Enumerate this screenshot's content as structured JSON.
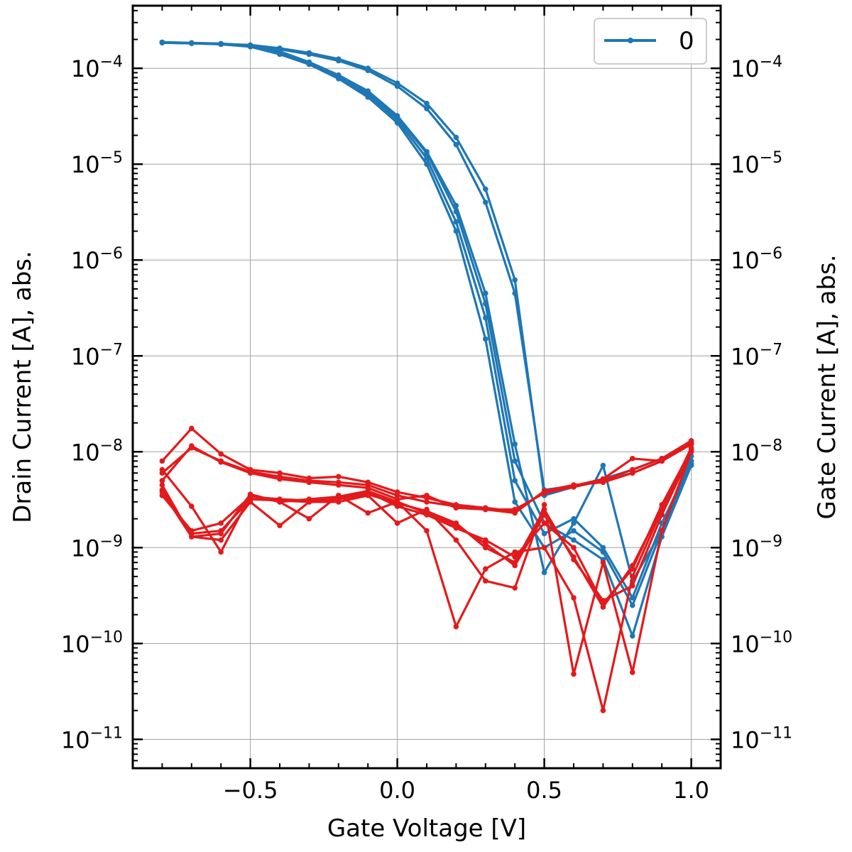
{
  "chart_data": {
    "type": "line",
    "xlabel": "Gate Voltage [V]",
    "ylabel": "Drain Current [A], abs.",
    "y2label": "Gate Current [A], abs.",
    "yscale": "log",
    "xlim": [
      -0.9,
      1.1
    ],
    "ylim": [
      5e-12,
      0.00045
    ],
    "xticks": [
      -0.5,
      0.0,
      0.5,
      1.0
    ],
    "xtick_labels": [
      "−0.5",
      "0.0",
      "0.5",
      "1.0"
    ],
    "yticks": [
      {
        "value": 0.0001,
        "mantissa": "10",
        "exponent": "−4"
      },
      {
        "value": 1e-05,
        "mantissa": "10",
        "exponent": "−5"
      },
      {
        "value": 1e-06,
        "mantissa": "10",
        "exponent": "−6"
      },
      {
        "value": 1e-07,
        "mantissa": "10",
        "exponent": "−7"
      },
      {
        "value": 1e-08,
        "mantissa": "10",
        "exponent": "−8"
      },
      {
        "value": 1e-09,
        "mantissa": "10",
        "exponent": "−9"
      },
      {
        "value": 1e-10,
        "mantissa": "10",
        "exponent": "−10"
      },
      {
        "value": 1e-11,
        "mantissa": "10",
        "exponent": "−11"
      }
    ],
    "grid": true,
    "legend": {
      "position": "top-right",
      "entries": [
        {
          "label": "0",
          "color": "#1f77b4"
        }
      ]
    },
    "colors": {
      "drain": "#1f77b4",
      "gate": "#e31a1c",
      "grid": "#a0a0a0"
    },
    "x": [
      -0.8,
      -0.7,
      -0.6,
      -0.5,
      -0.4,
      -0.3,
      -0.2,
      -0.1,
      0.0,
      0.1,
      0.2,
      0.3,
      0.4,
      0.5,
      0.6,
      0.7,
      0.8,
      0.9,
      1.0
    ],
    "drain_series": [
      {
        "values": [
          0.000185,
          0.000182,
          0.000178,
          0.000168,
          0.00014,
          0.00011,
          7.8e-05,
          5e-05,
          2.7e-05,
          1e-05,
          2e-06,
          1.5e-07,
          3e-09,
          1e-09,
          1.5e-09,
          9e-10,
          2.5e-10,
          1.5e-09,
          7.5e-09
        ]
      },
      {
        "values": [
          0.000186,
          0.000183,
          0.000179,
          0.00017,
          0.000145,
          0.000112,
          8e-05,
          5.3e-05,
          2.9e-05,
          1.15e-05,
          2.5e-06,
          2.5e-07,
          5e-09,
          1.4e-09,
          2e-09,
          1e-09,
          3e-10,
          1.8e-09,
          8e-09
        ]
      },
      {
        "values": [
          0.000187,
          0.000184,
          0.00018,
          0.000172,
          0.000148,
          0.000114,
          8.3e-05,
          5.6e-05,
          3.1e-05,
          1.3e-05,
          3.2e-06,
          3.5e-07,
          8e-09,
          1.8e-09,
          1.2e-09,
          7.5e-10,
          1.2e-10,
          1.3e-09,
          7.2e-09
        ]
      },
      {
        "values": [
          0.000187,
          0.000184,
          0.000181,
          0.000173,
          0.00015,
          0.000116,
          8.5e-05,
          5.8e-05,
          3.2e-05,
          1.35e-05,
          3.7e-06,
          4.5e-07,
          1.2e-08,
          5.5e-10,
          1.8e-09,
          7.2e-09,
          4.5e-10,
          1.5e-09,
          9e-09
        ]
      },
      {
        "values": [
          0.000185,
          0.000183,
          0.00018,
          0.000175,
          0.000162,
          0.000145,
          0.000125,
          0.0001,
          7e-05,
          4.3e-05,
          1.9e-05,
          5.5e-06,
          6.2e-07,
          3.5e-09,
          4.3e-09,
          5e-09,
          6e-09,
          8e-09,
          1.2e-08
        ]
      },
      {
        "values": [
          0.000185,
          0.000182,
          0.000179,
          0.000174,
          0.000158,
          0.00014,
          0.00012,
          9.5e-05,
          6.5e-05,
          3.8e-05,
          1.6e-05,
          4e-06,
          4.5e-07,
          4e-09,
          4.4e-09,
          5.2e-09,
          6.5e-09,
          8.5e-09,
          1.3e-08
        ]
      }
    ],
    "gate_series": [
      {
        "values": [
          8e-09,
          1.75e-08,
          9.5e-09,
          6.5e-09,
          6e-09,
          5.3e-09,
          5.5e-09,
          4.8e-09,
          3.8e-09,
          3.3e-09,
          2.8e-09,
          2.6e-09,
          2.4e-09,
          3.8e-09,
          4.4e-09,
          5.2e-09,
          8.5e-09,
          8e-09,
          1.25e-08
        ]
      },
      {
        "values": [
          6e-09,
          1.1e-08,
          8e-09,
          6.2e-09,
          5.5e-09,
          5e-09,
          4.8e-09,
          4.5e-09,
          3.5e-09,
          3e-09,
          2.7e-09,
          2.5e-09,
          2.5e-09,
          3.7e-09,
          4.3e-09,
          5e-09,
          6.5e-09,
          8.5e-09,
          1.3e-08
        ]
      },
      {
        "values": [
          5e-09,
          1.15e-08,
          7.8e-09,
          6e-09,
          5.2e-09,
          4.8e-09,
          4.5e-09,
          4.2e-09,
          3.2e-09,
          3.5e-09,
          2.6e-09,
          2.5e-09,
          2.3e-09,
          3.9e-09,
          4.5e-09,
          4.8e-09,
          6e-09,
          8e-09,
          1.2e-08
        ]
      },
      {
        "values": [
          6.5e-09,
          2.7e-09,
          9e-10,
          3.5e-09,
          3e-09,
          2e-09,
          3.5e-09,
          2.3e-09,
          3e-09,
          1.5e-09,
          1.5e-10,
          6e-10,
          9e-10,
          1e-09,
          3e-10,
          2e-11,
          5e-10,
          2.5e-09,
          1.1e-08
        ]
      },
      {
        "values": [
          4.5e-09,
          1.3e-09,
          1.2e-09,
          3e-09,
          1.7e-09,
          3e-09,
          3e-09,
          3.5e-09,
          1.8e-09,
          2.5e-09,
          1.2e-09,
          4.5e-10,
          3.8e-10,
          2.8e-09,
          4.8e-11,
          7e-10,
          5e-11,
          1.5e-09,
          1e-08
        ]
      },
      {
        "values": [
          3.5e-09,
          1.5e-09,
          1.8e-09,
          3.4e-09,
          3.2e-09,
          3.1e-09,
          3.3e-09,
          3.8e-09,
          2.7e-09,
          2.2e-09,
          1.6e-09,
          1.2e-09,
          8e-10,
          1.8e-09,
          1e-09,
          2.6e-10,
          6e-10,
          2.8e-09,
          1.05e-08
        ]
      },
      {
        "values": [
          4e-09,
          1.4e-09,
          1.5e-09,
          3.2e-09,
          3.1e-09,
          3e-09,
          3.2e-09,
          3.6e-09,
          2.9e-09,
          2.4e-09,
          1.8e-09,
          1e-09,
          7e-10,
          2.5e-09,
          7.5e-10,
          2.8e-10,
          4e-10,
          2.2e-09,
          1e-08
        ]
      },
      {
        "values": [
          3.8e-09,
          1.3e-09,
          1.4e-09,
          3.6e-09,
          3e-09,
          3.2e-09,
          3.4e-09,
          3.9e-09,
          3e-09,
          2.3e-09,
          1.7e-09,
          1.1e-09,
          6.5e-10,
          2.2e-09,
          8e-10,
          2.4e-10,
          6.5e-10,
          2.6e-09,
          1.02e-08
        ]
      }
    ]
  }
}
